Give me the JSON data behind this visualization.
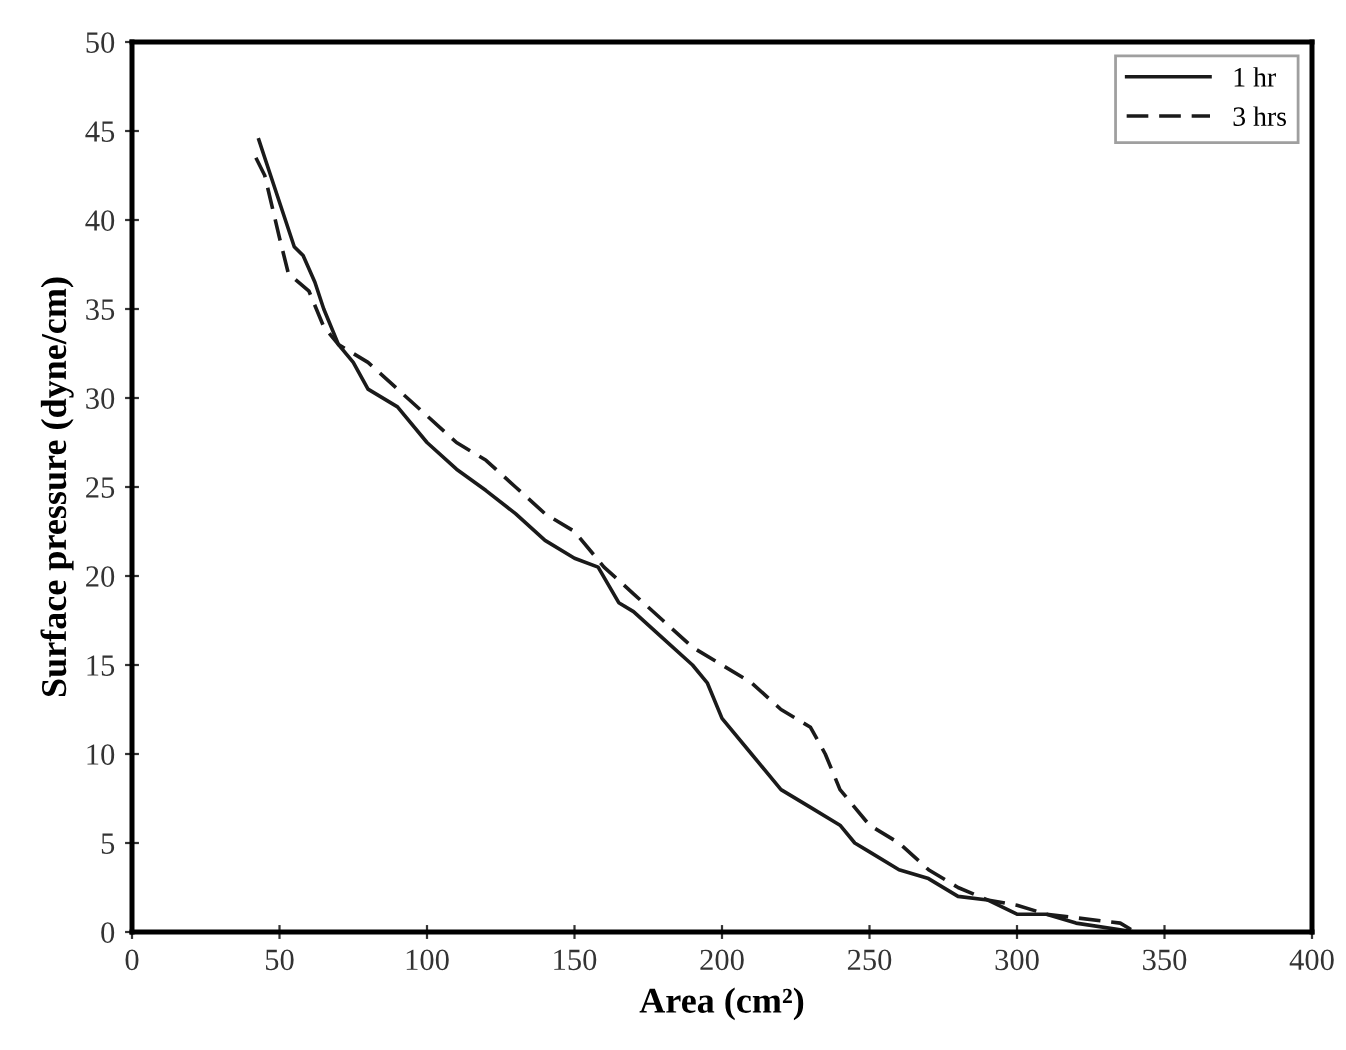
{
  "chart_data": {
    "type": "line",
    "xlabel": "Area (cm²)",
    "ylabel": "Surface pressure (dyne/cm)",
    "xlim": [
      0,
      400
    ],
    "ylim": [
      0,
      50
    ],
    "xticks": [
      0,
      50,
      100,
      150,
      200,
      250,
      300,
      350,
      400
    ],
    "yticks": [
      0,
      5,
      10,
      15,
      20,
      25,
      30,
      35,
      40,
      45,
      50
    ],
    "grid": false,
    "legend": "top right",
    "marker": "none",
    "series": [
      {
        "name": "1 hr",
        "color": "#1a1a1a",
        "line_style": "solid",
        "x": [
          43,
          45,
          50,
          55,
          58,
          62,
          65,
          70,
          75,
          80,
          90,
          100,
          110,
          120,
          130,
          140,
          150,
          158,
          165,
          170,
          180,
          190,
          195,
          200,
          210,
          220,
          230,
          240,
          245,
          250,
          260,
          270,
          280,
          290,
          300,
          310,
          320,
          340,
          400
        ],
        "values": [
          44.5,
          43.5,
          41,
          38.5,
          38,
          36.5,
          35,
          33,
          32,
          30.5,
          29.5,
          27.5,
          26,
          24.8,
          23.5,
          22,
          21,
          20.5,
          18.5,
          18,
          16.5,
          15,
          14,
          12,
          10,
          8,
          7,
          6,
          5,
          4.5,
          3.5,
          3,
          2,
          1.8,
          1,
          1,
          0.5,
          0,
          0
        ]
      },
      {
        "name": "3 hrs",
        "color": "#1a1a1a",
        "line_style": "dashed",
        "x": [
          42,
          45,
          50,
          53,
          60,
          65,
          70,
          80,
          90,
          100,
          110,
          120,
          130,
          140,
          150,
          160,
          170,
          180,
          190,
          200,
          210,
          220,
          230,
          235,
          240,
          250,
          260,
          270,
          280,
          290,
          300,
          310,
          320,
          335,
          340,
          400
        ],
        "values": [
          43.5,
          42.5,
          39,
          37,
          36,
          34,
          33,
          32,
          30.5,
          29,
          27.5,
          26.5,
          25,
          23.5,
          22.5,
          20.5,
          19,
          17.5,
          16,
          15,
          14,
          12.5,
          11.5,
          10,
          8,
          6,
          5,
          3.5,
          2.5,
          1.8,
          1.5,
          1,
          0.8,
          0.5,
          0,
          0
        ]
      }
    ]
  }
}
